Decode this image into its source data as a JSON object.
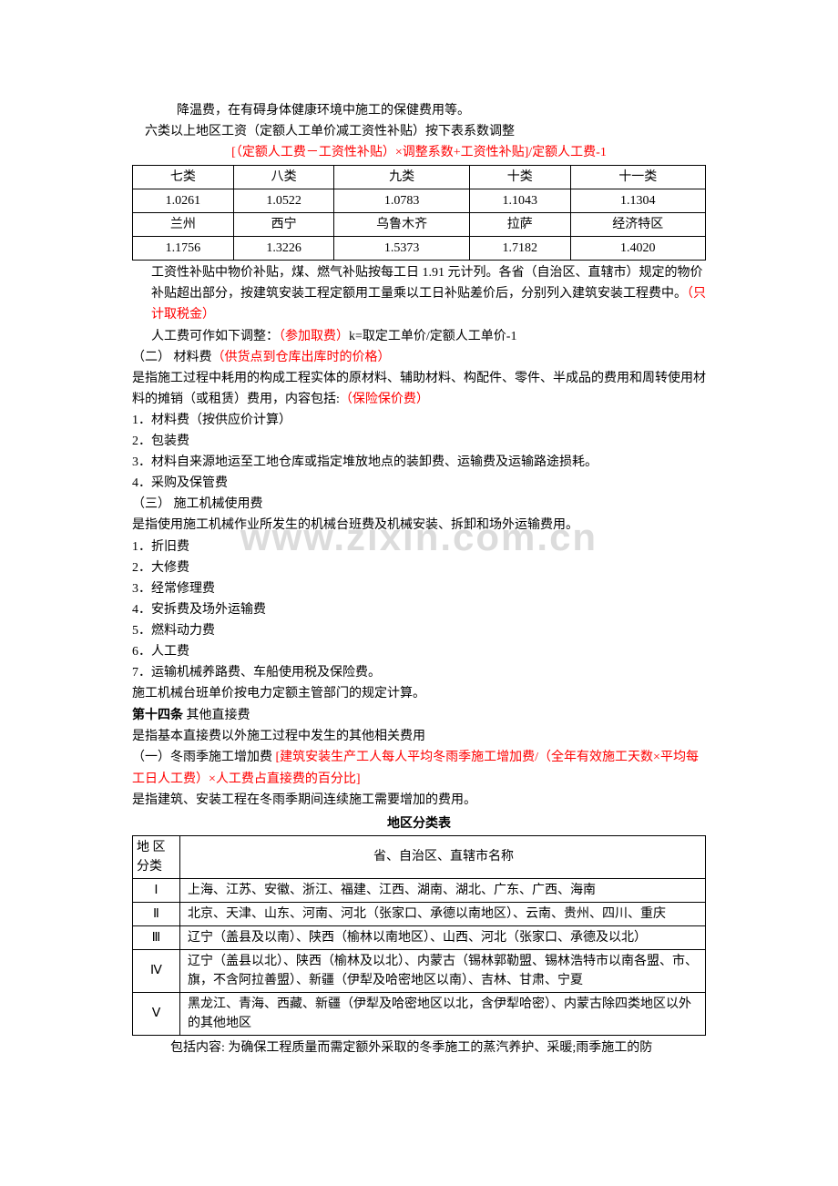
{
  "watermark": "www.zixin.com.cn",
  "para1": "降温费，在有碍身体健康环境中施工的保健费用等。",
  "para2": "六类以上地区工资（定额人工单价减工资性补贴）按下表系数调整",
  "formula1": "[（定额人工费－工资性补贴）×调整系数+工资性补贴]/定额人工费-1",
  "table1": {
    "headers": [
      "七类",
      "八类",
      "九类",
      "十类",
      "十一类"
    ],
    "row1": [
      "1.0261",
      "1.0522",
      "1.0783",
      "1.1043",
      "1.1304"
    ],
    "row2": [
      "兰州",
      "西宁",
      "乌鲁木齐",
      "拉萨",
      "经济特区"
    ],
    "row3": [
      "1.1756",
      "1.3226",
      "1.5373",
      "1.7182",
      "1.4020"
    ]
  },
  "para3a": "工资性补贴中物价补贴，煤、燃气补贴按每工日 1.91 元计列。各省（自治区、直辖市）规定的物价补贴超出部分，按建筑安装工程定额用工量乘以工日补贴差价后，分别列入建筑安装工程费中。",
  "para3b": "（只计取税金）",
  "para4a": "人工费可作如下调整：",
  "para4b": "（参加取费）",
  "para4c": "k=取定工单价/定额人工单价-1",
  "para5a": "（二） 材料费",
  "para5b": "（供货点到仓库出库时的价格）",
  "para6a": "是指施工过程中耗用的构成工程实体的原材料、辅助材料、构配件、零件、半成品的费用和周转使用材料的摊销（或租赁）费用，内容包括:",
  "para6b": "（保险保价费）",
  "l1": "1．材料费（按供应价计算）",
  "l2": "2．包装费",
  "l3": "3．材料自来源地运至工地仓库或指定堆放地点的装卸费、运输费及运输路途损耗。",
  "l4": "4．采购及保管费",
  "para7": "（三） 施工机械使用费",
  "para8": "是指使用施工机械作业所发生的机械台班费及机械安装、拆卸和场外运输费用。",
  "m1": "1．折旧费",
  "m2": "2．大修费",
  "m3": "3．经常修理费",
  "m4": "4．安拆费及场外运输费",
  "m5": "5．燃料动力费",
  "m6": "6．人工费",
  "m7": "7．运输机械养路费、车船使用税及保险费。",
  "para9": "施工机械台班单价按电力定额主管部门的规定计算。",
  "art14a": "第十四条",
  "art14b": "  其他直接费",
  "para10": "是指基本直接费以外施工过程中发生的其他相关费用",
  "para11a": "（一）冬雨季施工增加费    ",
  "para11b": "[建筑安装生产工人每人平均冬雨季施工增加费/（全年有效施工天数×平均每工日人工费）×人工费占直接费的百分比]",
  "para12": "是指建筑、安装工程在冬雨季期间连续施工需要增加的费用。",
  "table2_title": "地区分类表",
  "table2": {
    "h1": "地 区分类",
    "h2": "省、自治区、直辖市名称",
    "r1": [
      "Ⅰ",
      "上海、江苏、安徽、浙江、福建、江西、湖南、湖北、广东、广西、海南"
    ],
    "r2": [
      "Ⅱ",
      "北京、天津、山东、河南、河北（张家口、承德以南地区）、云南、贵州、四川、重庆"
    ],
    "r3": [
      "Ⅲ",
      "辽宁（盖县及以南）、陕西（榆林以南地区）、山西、河北（张家口、承德及以北）"
    ],
    "r4": [
      "Ⅳ",
      "辽宁（盖县以北）、陕西（榆林及以北）、内蒙古（锡林郭勒盟、锡林浩特市以南各盟、市、旗，不含阿拉善盟）、新疆（伊犁及哈密地区以南）、吉林、甘肃、宁夏"
    ],
    "r5": [
      "Ⅴ",
      "黑龙江、青海、西藏、新疆（伊犁及哈密地区以北，含伊犁哈密）、内蒙古除四类地区以外的其他地区"
    ]
  },
  "para13": "包括内容: 为确保工程质量而需定额外采取的冬季施工的蒸汽养护、采暖;雨季施工的防"
}
